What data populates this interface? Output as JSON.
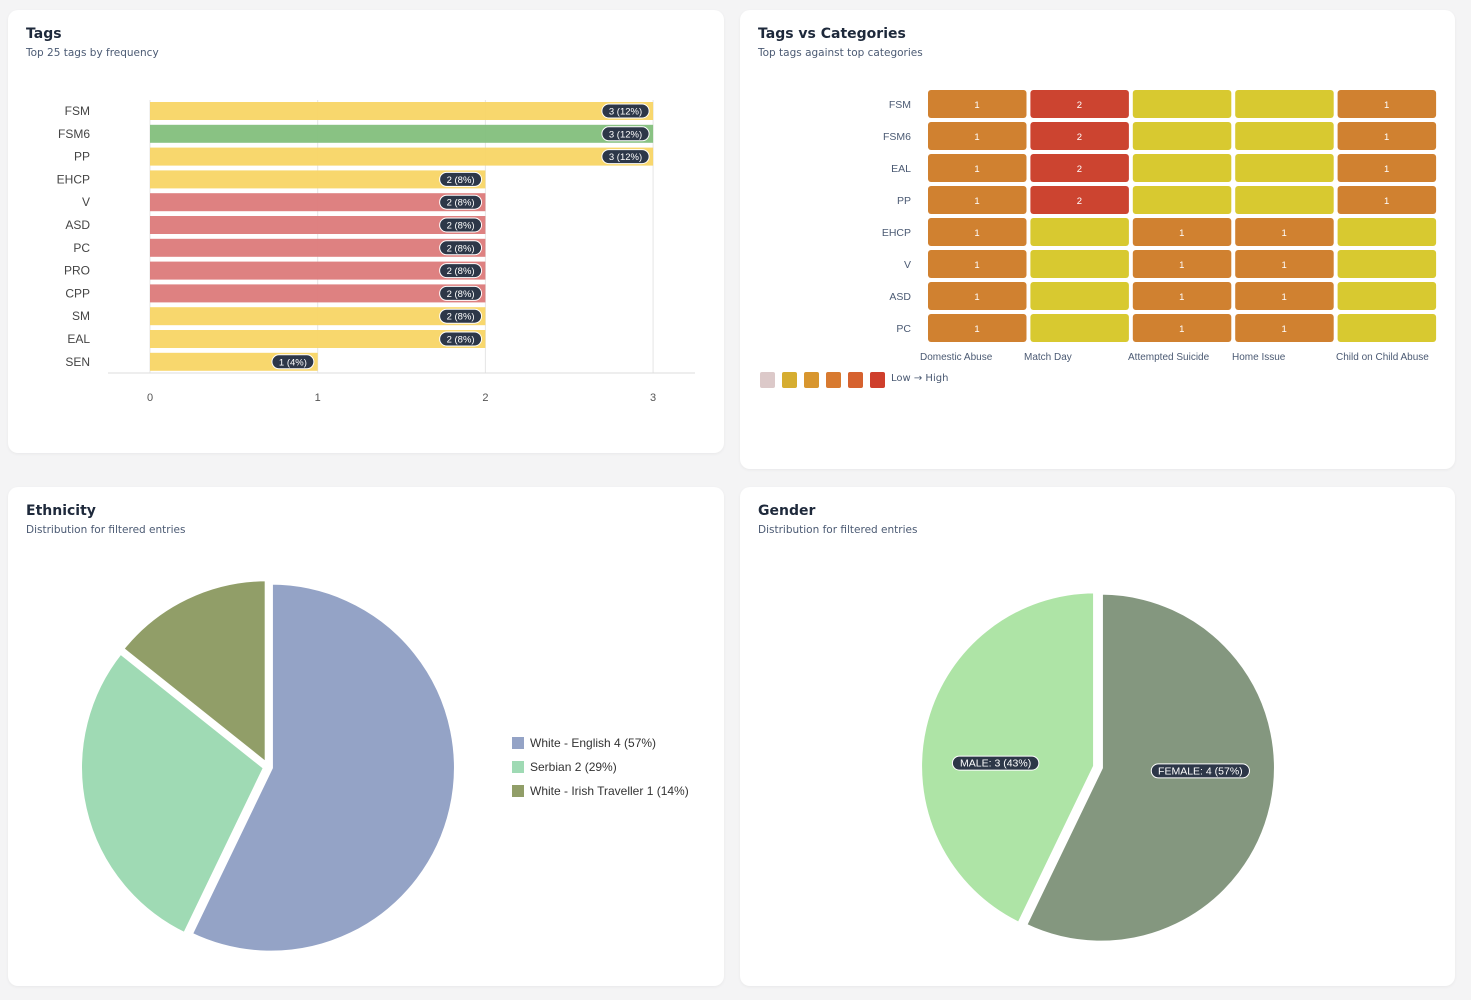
{
  "tags": {
    "title": "Tags",
    "subtitle": "Top 25 tags by frequency"
  },
  "heat": {
    "title": "Tags vs Categories",
    "subtitle": "Top tags against top categories",
    "legend_label": "Low → High"
  },
  "ethnicity": {
    "title": "Ethnicity",
    "subtitle": "Distribution for filtered entries"
  },
  "gender": {
    "title": "Gender",
    "subtitle": "Distribution for filtered entries"
  },
  "chart_data": [
    {
      "type": "bar",
      "orientation": "horizontal",
      "categories": [
        "FSM",
        "FSM6",
        "PP",
        "EHCP",
        "V",
        "ASD",
        "PC",
        "PRO",
        "CPP",
        "SM",
        "EAL",
        "SEN"
      ],
      "values": [
        3,
        3,
        3,
        2,
        2,
        2,
        2,
        2,
        2,
        2,
        2,
        1
      ],
      "data_labels": [
        "3 (12%)",
        "3 (12%)",
        "3 (12%)",
        "2 (8%)",
        "2 (8%)",
        "2 (8%)",
        "2 (8%)",
        "2 (8%)",
        "2 (8%)",
        "2 (8%)",
        "2 (8%)",
        "1 (4%)"
      ],
      "colors": [
        "#f8d565",
        "#83bf7c",
        "#f8d565",
        "#f8d565",
        "#dc7a7a",
        "#dc7a7a",
        "#dc7a7a",
        "#dc7a7a",
        "#dc7a7a",
        "#f8d565",
        "#f8d565",
        "#f8d565"
      ],
      "xticks": [
        0,
        1,
        2,
        3
      ],
      "xlim": [
        0,
        3.25
      ],
      "grid": true
    },
    {
      "type": "heatmap",
      "rows": [
        "FSM",
        "FSM6",
        "EAL",
        "PP",
        "EHCP",
        "V",
        "ASD",
        "PC"
      ],
      "columns": [
        "Domestic Abuse",
        "Match Day",
        "Attempted Suicide",
        "Home Issue",
        "Child on Child Abuse"
      ],
      "values": [
        [
          1,
          2,
          0,
          0,
          1
        ],
        [
          1,
          2,
          0,
          0,
          1
        ],
        [
          1,
          2,
          0,
          0,
          1
        ],
        [
          1,
          2,
          0,
          0,
          1
        ],
        [
          1,
          0,
          1,
          1,
          0
        ],
        [
          1,
          0,
          1,
          1,
          0
        ],
        [
          1,
          0,
          1,
          1,
          0
        ],
        [
          1,
          0,
          1,
          1,
          0
        ]
      ],
      "cell_colors": {
        "0": "#d8c930",
        "1": "#d08130",
        "2": "#cc4430"
      },
      "scale_colors": [
        "#dcc9c9",
        "#d6ad30",
        "#d8962e",
        "#d87a30",
        "#d6622f",
        "#cf3f2c"
      ]
    },
    {
      "type": "pie",
      "labels": [
        "White - English",
        "Serbian",
        "White - Irish Traveller"
      ],
      "values": [
        4,
        2,
        1
      ],
      "legend": [
        "White - English 4 (57%)",
        "Serbian 2 (29%)",
        "White - Irish Traveller 1 (14%)"
      ],
      "colors": [
        "#94a3c6",
        "#9fdab4",
        "#919e68"
      ],
      "legend_placement": "right"
    },
    {
      "type": "pie",
      "labels": [
        "FEMALE",
        "MALE"
      ],
      "values": [
        4,
        3
      ],
      "data_labels": [
        "FEMALE: 4 (57%)",
        "MALE: 3 (43%)"
      ],
      "colors": [
        "#84977f",
        "#aee4a6"
      ]
    }
  ]
}
